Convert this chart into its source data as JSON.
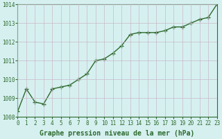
{
  "x": [
    0,
    1,
    2,
    3,
    4,
    5,
    6,
    7,
    8,
    9,
    10,
    11,
    12,
    13,
    14,
    15,
    16,
    17,
    18,
    19,
    20,
    21,
    22,
    23
  ],
  "y": [
    1008.3,
    1009.5,
    1008.8,
    1008.7,
    1009.5,
    1009.6,
    1009.7,
    1010.0,
    1010.3,
    1011.0,
    1011.1,
    1011.4,
    1011.8,
    1012.4,
    1012.5,
    1012.5,
    1012.5,
    1012.6,
    1012.8,
    1012.8,
    1013.0,
    1013.2,
    1013.3,
    1014.0
  ],
  "line_color": "#2d6a2d",
  "marker": "+",
  "marker_size": 4,
  "linewidth": 1.0,
  "ylim": [
    1008,
    1014
  ],
  "xlim": [
    0,
    23
  ],
  "yticks": [
    1008,
    1009,
    1010,
    1011,
    1012,
    1013,
    1014
  ],
  "xtick_labels": [
    "0",
    "1",
    "2",
    "3",
    "4",
    "5",
    "6",
    "7",
    "8",
    "9",
    "10",
    "11",
    "12",
    "13",
    "14",
    "15",
    "16",
    "17",
    "18",
    "19",
    "20",
    "21",
    "22",
    "23"
  ],
  "xlabel": "Graphe pression niveau de la mer (hPa)",
  "background_color": "#d6f0f0",
  "grid_color": "#c8b8c8",
  "tick_color": "#2d6a2d",
  "label_color": "#2d6a2d",
  "tick_fontsize": 5.5,
  "xlabel_fontsize": 7.0
}
